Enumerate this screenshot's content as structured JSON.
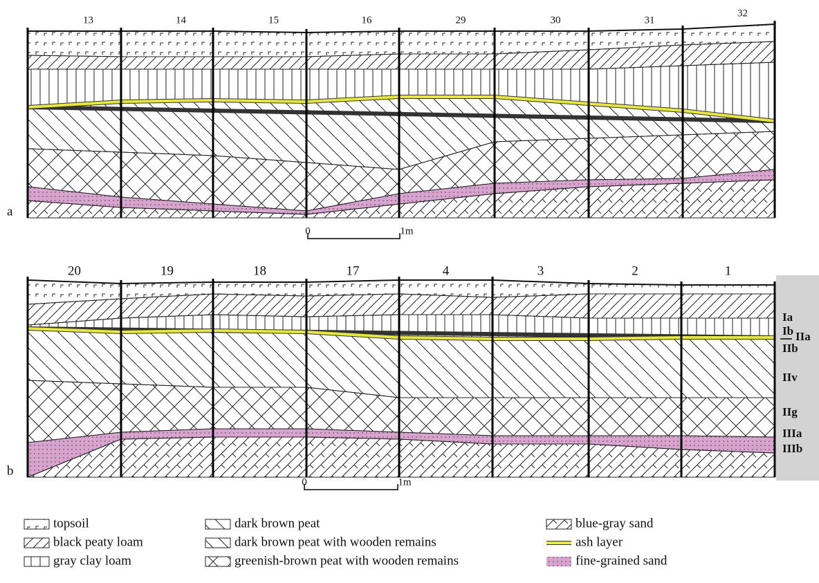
{
  "panels": [
    {
      "label": "a",
      "columns": [
        "13",
        "14",
        "15",
        "16",
        "29",
        "30",
        "31",
        "32"
      ],
      "scale": {
        "start": "0",
        "end": "1m"
      }
    },
    {
      "label": "b",
      "columns": [
        "20",
        "19",
        "18",
        "17",
        "4",
        "3",
        "2",
        "1"
      ],
      "scale": {
        "start": "0",
        "end": "1m"
      }
    }
  ],
  "layer_labels": [
    "Ia",
    "Ib",
    "IIa",
    "IIb",
    "IIv",
    "IIg",
    "IIIa",
    "IIIb"
  ],
  "legend": [
    "topsoil",
    "black peaty loam",
    "gray clay loam",
    "dark brown peat",
    "dark brown peat with wooden remains",
    "greenish-brown peat with wooden remains",
    "blue-gray sand",
    "ash layer",
    "fine-grained sand"
  ]
}
